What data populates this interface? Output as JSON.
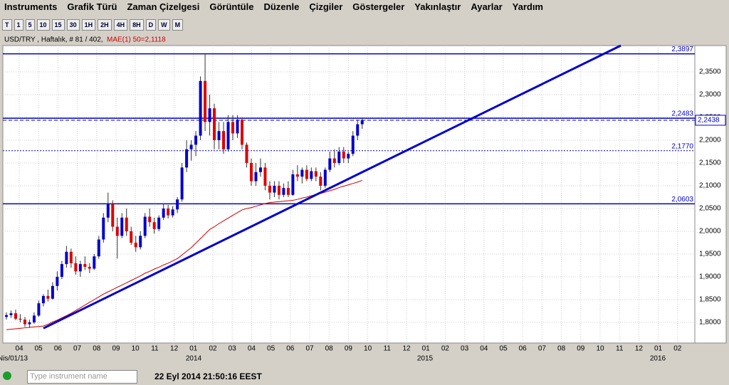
{
  "menu": [
    "Instruments",
    "Grafik Türü",
    "Zaman Çizelgesi",
    "Görüntüle",
    "Düzenle",
    "Çizgiler",
    "Göstergeler",
    "Yakınlaştır",
    "Ayarlar",
    "Yardım"
  ],
  "toolbar": [
    "T",
    "1",
    "5",
    "10",
    "15",
    "30",
    "1H",
    "2H",
    "4H",
    "8H",
    "D",
    "W",
    "M"
  ],
  "chart_data": {
    "type": "candlestick",
    "title": "USD/TRY , Haftalık, # 81 / 402,",
    "indicator_label": "MAE(1) 50=2,1118",
    "up_color": "#0000cc",
    "down_color": "#dd0000",
    "ma_color": "#cc0000",
    "line_color": "#0000cc",
    "ylim": [
      1.7547,
      2.4078
    ],
    "yticks": [
      {
        "value": 1.8,
        "label": "1,8000"
      },
      {
        "value": 1.85,
        "label": "1,8500"
      },
      {
        "value": 1.9,
        "label": "1,9000"
      },
      {
        "value": 1.95,
        "label": "1,9500"
      },
      {
        "value": 2.0,
        "label": "2,0000"
      },
      {
        "value": 2.05,
        "label": "2,0500"
      },
      {
        "value": 2.1,
        "label": "2,1000"
      },
      {
        "value": 2.15,
        "label": "2,1500"
      },
      {
        "value": 2.2,
        "label": "2,2000"
      },
      {
        "value": 2.25,
        "label": "2,2500"
      },
      {
        "value": 2.3,
        "label": "2,3000"
      },
      {
        "value": 2.35,
        "label": "2,3500"
      }
    ],
    "month_labels": [
      "04",
      "05",
      "06",
      "07",
      "08",
      "09",
      "10",
      "11",
      "12",
      "01",
      "02",
      "03",
      "04",
      "05",
      "06",
      "07",
      "08",
      "09",
      "10",
      "11",
      "12",
      "01",
      "02",
      "03",
      "04",
      "05",
      "06",
      "07",
      "08",
      "09",
      "10",
      "11",
      "12",
      "01",
      "02"
    ],
    "year_labels": [
      "Nis/01/13",
      "2014",
      "2015",
      "2016"
    ],
    "grid": true,
    "candles": [
      [
        1.812,
        1.822,
        1.806,
        1.816
      ],
      [
        1.816,
        1.826,
        1.81,
        1.82
      ],
      [
        1.82,
        1.828,
        1.805,
        1.808
      ],
      [
        1.808,
        1.818,
        1.8,
        1.806
      ],
      [
        1.806,
        1.812,
        1.79,
        1.796
      ],
      [
        1.796,
        1.806,
        1.788,
        1.8
      ],
      [
        1.8,
        1.822,
        1.797,
        1.815
      ],
      [
        1.815,
        1.848,
        1.812,
        1.842
      ],
      [
        1.842,
        1.862,
        1.835,
        1.858
      ],
      [
        1.858,
        1.872,
        1.846,
        1.852
      ],
      [
        1.852,
        1.888,
        1.85,
        1.88
      ],
      [
        1.88,
        1.912,
        1.87,
        1.9
      ],
      [
        1.9,
        1.935,
        1.895,
        1.928
      ],
      [
        1.928,
        1.968,
        1.92,
        1.955
      ],
      [
        1.955,
        1.962,
        1.92,
        1.93
      ],
      [
        1.93,
        1.945,
        1.905,
        1.912
      ],
      [
        1.912,
        1.935,
        1.9,
        1.928
      ],
      [
        1.928,
        1.945,
        1.915,
        1.922
      ],
      [
        1.922,
        1.93,
        1.908,
        1.918
      ],
      [
        1.918,
        1.95,
        1.915,
        1.945
      ],
      [
        1.945,
        1.99,
        1.94,
        1.982
      ],
      [
        1.982,
        2.04,
        1.975,
        2.03
      ],
      [
        2.03,
        2.085,
        2.02,
        2.06
      ],
      [
        2.06,
        2.068,
        2.0,
        2.01
      ],
      [
        2.01,
        2.03,
        1.94,
        1.99
      ],
      [
        1.99,
        2.04,
        1.985,
        2.03
      ],
      [
        2.03,
        2.05,
        1.99,
        2.0
      ],
      [
        2.0,
        2.01,
        1.97,
        1.975
      ],
      [
        1.975,
        1.99,
        1.955,
        1.965
      ],
      [
        1.965,
        2.0,
        1.96,
        1.99
      ],
      [
        1.99,
        2.04,
        1.985,
        2.032
      ],
      [
        2.032,
        2.05,
        2.01,
        2.02
      ],
      [
        2.02,
        2.03,
        1.995,
        2.005
      ],
      [
        2.005,
        2.035,
        2.0,
        2.03
      ],
      [
        2.03,
        2.06,
        2.025,
        2.05
      ],
      [
        2.05,
        2.058,
        2.028,
        2.035
      ],
      [
        2.035,
        2.055,
        2.03,
        2.048
      ],
      [
        2.048,
        2.075,
        2.04,
        2.07
      ],
      [
        2.07,
        2.15,
        2.065,
        2.14
      ],
      [
        2.14,
        2.2,
        2.13,
        2.18
      ],
      [
        2.18,
        2.2,
        2.155,
        2.19
      ],
      [
        2.19,
        2.22,
        2.165,
        2.21
      ],
      [
        2.21,
        2.34,
        2.2,
        2.33
      ],
      [
        2.33,
        2.39,
        2.22,
        2.24
      ],
      [
        2.24,
        2.3,
        2.21,
        2.27
      ],
      [
        2.27,
        2.28,
        2.18,
        2.2
      ],
      [
        2.2,
        2.24,
        2.18,
        2.22
      ],
      [
        2.22,
        2.24,
        2.17,
        2.18
      ],
      [
        2.18,
        2.255,
        2.175,
        2.24
      ],
      [
        2.24,
        2.255,
        2.2,
        2.215
      ],
      [
        2.215,
        2.255,
        2.205,
        2.245
      ],
      [
        2.245,
        2.25,
        2.18,
        2.19
      ],
      [
        2.19,
        2.195,
        2.14,
        2.15
      ],
      [
        2.15,
        2.16,
        2.1,
        2.11
      ],
      [
        2.11,
        2.15,
        2.1,
        2.13
      ],
      [
        2.13,
        2.16,
        2.12,
        2.14
      ],
      [
        2.14,
        2.15,
        2.09,
        2.1
      ],
      [
        2.1,
        2.11,
        2.07,
        2.085
      ],
      [
        2.085,
        2.11,
        2.075,
        2.1
      ],
      [
        2.1,
        2.11,
        2.07,
        2.08
      ],
      [
        2.08,
        2.105,
        2.075,
        2.095
      ],
      [
        2.095,
        2.11,
        2.075,
        2.08
      ],
      [
        2.08,
        2.135,
        2.078,
        2.125
      ],
      [
        2.125,
        2.145,
        2.11,
        2.12
      ],
      [
        2.12,
        2.14,
        2.105,
        2.135
      ],
      [
        2.135,
        2.145,
        2.11,
        2.115
      ],
      [
        2.115,
        2.14,
        2.11,
        2.132
      ],
      [
        2.132,
        2.14,
        2.11,
        2.12
      ],
      [
        2.12,
        2.13,
        2.09,
        2.1
      ],
      [
        2.1,
        2.14,
        2.095,
        2.135
      ],
      [
        2.135,
        2.175,
        2.13,
        2.16
      ],
      [
        2.16,
        2.18,
        2.14,
        2.15
      ],
      [
        2.15,
        2.185,
        2.145,
        2.175
      ],
      [
        2.175,
        2.185,
        2.15,
        2.16
      ],
      [
        2.16,
        2.175,
        2.15,
        2.17
      ],
      [
        2.17,
        2.22,
        2.165,
        2.21
      ],
      [
        2.21,
        2.245,
        2.2,
        2.235
      ],
      [
        2.235,
        2.25,
        2.225,
        2.244
      ]
    ],
    "ma_values": [
      1.784,
      1.785,
      1.786,
      1.787,
      1.788,
      1.789,
      1.79,
      1.791,
      1.792,
      1.796,
      1.801,
      1.805,
      1.81,
      1.815,
      1.82,
      1.826,
      1.832,
      1.838,
      1.844,
      1.85,
      1.856,
      1.862,
      1.867,
      1.872,
      1.877,
      1.882,
      1.887,
      1.892,
      1.897,
      1.902,
      1.908,
      1.912,
      1.917,
      1.921,
      1.926,
      1.93,
      1.935,
      1.94,
      1.948,
      1.956,
      1.964,
      1.974,
      1.984,
      1.994,
      2.004,
      2.01,
      2.017,
      2.023,
      2.029,
      2.035,
      2.041,
      2.047,
      2.05,
      2.052,
      2.055,
      2.058,
      2.061,
      2.063,
      2.064,
      2.065,
      2.066,
      2.067,
      2.068,
      2.07,
      2.073,
      2.075,
      2.078,
      2.081,
      2.083,
      2.086,
      2.089,
      2.092,
      2.096,
      2.099,
      2.102,
      2.105,
      2.108,
      2.1118
    ],
    "levels": [
      {
        "value": 2.3897,
        "label": "2,3897",
        "style": "solid"
      },
      {
        "value": 2.2483,
        "label": "2,2483",
        "style": "solid"
      },
      {
        "value": 2.177,
        "label": "2,1770",
        "style": "dotted"
      },
      {
        "value": 2.0603,
        "label": "2,0603",
        "style": "solid"
      }
    ],
    "current_price": {
      "value": 2.2438,
      "label": "2,2438"
    },
    "trendline": [
      1.787,
      2.4078
    ]
  },
  "status": {
    "placeholder": "Type instrument name",
    "time": "22 Eyl 2014 21:50:16 EEST"
  }
}
